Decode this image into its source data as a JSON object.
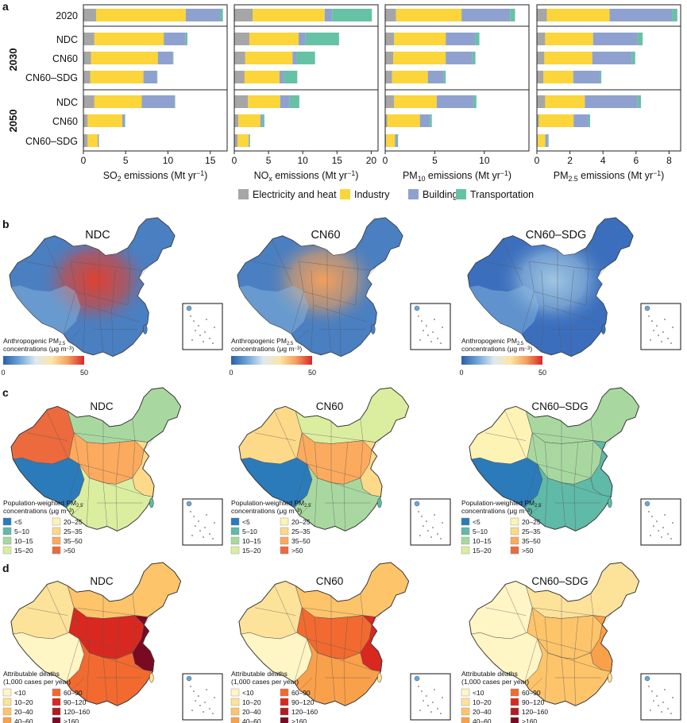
{
  "panel_labels": {
    "a": "a",
    "b": "b",
    "c": "c",
    "d": "d"
  },
  "panel_a": {
    "row_labels": [
      "2020",
      "NDC",
      "CN60",
      "CN60–SDG",
      "NDC",
      "CN60",
      "CN60–SDG"
    ],
    "group_labels": {
      "g2030": "2030",
      "g2050": "2050"
    },
    "legend": [
      {
        "label": "Electricity and heat",
        "color": "#a6a6a6"
      },
      {
        "label": "Industry",
        "color": "#fbd53a"
      },
      {
        "label": "Building",
        "color": "#8fa2cf"
      },
      {
        "label": "Transportation",
        "color": "#66c2a4"
      }
    ]
  },
  "chart_data": [
    {
      "type": "bar",
      "orientation": "horizontal",
      "stacked": true,
      "categories": [
        "2020",
        "NDC",
        "CN60",
        "CN60–SDG",
        "NDC",
        "CN60",
        "CN60–SDG"
      ],
      "xlabel": "SO2 emissions (Mt yr−1)",
      "xlim": [
        0,
        17
      ],
      "xticks": [
        "0",
        "5",
        "10",
        "15"
      ],
      "series": [
        {
          "name": "Electricity and heat",
          "values": [
            1.5,
            1.3,
            0.9,
            0.8,
            1.3,
            0.5,
            0.5
          ]
        },
        {
          "name": "Industry",
          "values": [
            10.6,
            8.2,
            7.9,
            6.3,
            5.6,
            4.1,
            1.2
          ]
        },
        {
          "name": "Building",
          "values": [
            4.1,
            2.6,
            1.8,
            1.6,
            3.9,
            0.3,
            0.1
          ]
        },
        {
          "name": "Transportation",
          "values": [
            0.3,
            0.2,
            0.05,
            0.05,
            0.05,
            0.05,
            0.05
          ]
        }
      ]
    },
    {
      "type": "bar",
      "orientation": "horizontal",
      "stacked": true,
      "categories": [
        "2020",
        "NDC",
        "CN60",
        "CN60–SDG",
        "NDC",
        "CN60",
        "CN60–SDG"
      ],
      "xlabel": "NOx emissions (Mt yr−1)",
      "xlim": [
        0,
        21
      ],
      "xticks": [
        "0",
        "5",
        "10",
        "15",
        "20"
      ],
      "series": [
        {
          "name": "Electricity and heat",
          "values": [
            2.7,
            2.2,
            1.6,
            1.5,
            2.0,
            0.6,
            0.5
          ]
        },
        {
          "name": "Industry",
          "values": [
            10.5,
            7.2,
            6.9,
            5.1,
            4.7,
            3.2,
            1.6
          ]
        },
        {
          "name": "Building",
          "values": [
            1.1,
            1.0,
            0.6,
            0.7,
            1.4,
            0.3,
            0.1
          ]
        },
        {
          "name": "Transportation",
          "values": [
            5.8,
            4.9,
            2.7,
            1.9,
            1.4,
            0.3,
            0.1
          ]
        }
      ]
    },
    {
      "type": "bar",
      "orientation": "horizontal",
      "stacked": true,
      "categories": [
        "2020",
        "NDC",
        "CN60",
        "CN60–SDG",
        "NDC",
        "CN60",
        "CN60–SDG"
      ],
      "xlabel": "PM10 emissions (Mt yr−1)",
      "xlim": [
        0,
        14.5
      ],
      "xticks": [
        "0",
        "5",
        "10"
      ],
      "series": [
        {
          "name": "Electricity and heat",
          "values": [
            1.1,
            0.9,
            0.8,
            0.7,
            0.9,
            0.2,
            0.1
          ]
        },
        {
          "name": "Industry",
          "values": [
            6.6,
            5.2,
            5.3,
            3.6,
            4.3,
            3.3,
            0.9
          ]
        },
        {
          "name": "Building",
          "values": [
            4.9,
            3.0,
            2.7,
            1.6,
            3.7,
            1.0,
            0.2
          ]
        },
        {
          "name": "Transportation",
          "values": [
            0.5,
            0.4,
            0.3,
            0.2,
            0.3,
            0.2,
            0.1
          ]
        }
      ]
    },
    {
      "type": "bar",
      "orientation": "horizontal",
      "stacked": true,
      "categories": [
        "2020",
        "NDC",
        "CN60",
        "CN60–SDG",
        "NDC",
        "CN60",
        "CN60–SDG"
      ],
      "xlabel": "PM2.5 emissions (Mt yr−1)",
      "xlim": [
        0,
        8.7
      ],
      "xticks": [
        "0",
        "2",
        "4",
        "6",
        "8"
      ],
      "series": [
        {
          "name": "Electricity and heat",
          "values": [
            0.6,
            0.5,
            0.45,
            0.4,
            0.5,
            0.12,
            0.06
          ]
        },
        {
          "name": "Industry",
          "values": [
            3.8,
            2.9,
            2.9,
            1.8,
            2.4,
            2.1,
            0.45
          ]
        },
        {
          "name": "Building",
          "values": [
            3.8,
            2.7,
            2.4,
            1.6,
            3.2,
            0.9,
            0.15
          ]
        },
        {
          "name": "Transportation",
          "values": [
            0.3,
            0.3,
            0.2,
            0.1,
            0.2,
            0.1,
            0.05
          ]
        }
      ]
    }
  ],
  "panel_b": {
    "maps": [
      {
        "title": "NDC"
      },
      {
        "title": "CN60"
      },
      {
        "title": "CN60–SDG"
      }
    ],
    "legend_line1": "Anthropogenic PM",
    "legend_sub": "2.5",
    "legend_line2": "concentrations (μg m",
    "legend_sup": "−3",
    "legend_close": ")",
    "scale_min": "0",
    "scale_max": "50",
    "gradient": [
      "#2c5fa8",
      "#6fa5d6",
      "#dfe9f0",
      "#fbe6a8",
      "#f4a05e",
      "#d7262a"
    ],
    "map_colors": [
      {
        "base": "#4a7fc1",
        "hot": "#e0402f"
      },
      {
        "base": "#4a7fc1",
        "hot": "#f2a05a"
      },
      {
        "base": "#3b6fbd",
        "hot": "#9fc5e2"
      }
    ]
  },
  "panel_c": {
    "maps": [
      {
        "title": "NDC"
      },
      {
        "title": "CN60"
      },
      {
        "title": "CN60–SDG"
      }
    ],
    "legend_line1": "Population-weighted PM",
    "legend_sub": "2.5",
    "legend_line2": "concentrations (μg m",
    "legend_sup": "−3",
    "legend_close": ")",
    "categories": [
      {
        "label": "<5",
        "color": "#2b7bba"
      },
      {
        "label": "5–10",
        "color": "#5fbaa8"
      },
      {
        "label": "10–15",
        "color": "#a8d8a0"
      },
      {
        "label": "15–20",
        "color": "#dbeea0"
      },
      {
        "label": "20–25",
        "color": "#fcf3b5"
      },
      {
        "label": "25–35",
        "color": "#fdd98a"
      },
      {
        "label": "35–50",
        "color": "#fcaa5e"
      },
      {
        "label": ">50",
        "color": "#ec6a3d"
      }
    ],
    "map_colors": [
      {
        "west": "#ec6a3d",
        "tibet": "#2b7bba",
        "north": "#a8d8a0",
        "center": "#fcaa5e",
        "south": "#dbeea0",
        "east": "#fdd98a"
      },
      {
        "west": "#fdd98a",
        "tibet": "#2b7bba",
        "north": "#dbeea0",
        "center": "#fcaa5e",
        "south": "#a8d8a0",
        "east": "#fdd98a"
      },
      {
        "west": "#fcf3b5",
        "tibet": "#2b7bba",
        "north": "#a8d8a0",
        "center": "#a8d8a0",
        "south": "#5fbaa8",
        "east": "#5fbaa8"
      }
    ]
  },
  "panel_d": {
    "maps": [
      {
        "title": "NDC"
      },
      {
        "title": "CN60"
      },
      {
        "title": "CN60–SDG"
      }
    ],
    "legend_line1": "Attributable deaths",
    "legend_line2": "(1,000 cases per year)",
    "categories": [
      {
        "label": "<10",
        "color": "#fff5c5"
      },
      {
        "label": "10–20",
        "color": "#fde29a"
      },
      {
        "label": "20–40",
        "color": "#fdc46a"
      },
      {
        "label": "40–60",
        "color": "#f9a04a"
      },
      {
        "label": "60–90",
        "color": "#f26a30"
      },
      {
        "label": "90–120",
        "color": "#d92820"
      },
      {
        "label": "120–160",
        "color": "#b01c22"
      },
      {
        "label": ">160",
        "color": "#7a0a22"
      }
    ],
    "map_colors": [
      {
        "west": "#fde29a",
        "tibet": "#fff5c5",
        "north": "#fdc46a",
        "center": "#d92820",
        "south": "#f26a30",
        "east": "#7a0a22"
      },
      {
        "west": "#fde29a",
        "tibet": "#fff5c5",
        "north": "#fdc46a",
        "center": "#f26a30",
        "south": "#f9a04a",
        "east": "#d92820"
      },
      {
        "west": "#fff5c5",
        "tibet": "#fff5c5",
        "north": "#fde29a",
        "center": "#fdc46a",
        "south": "#fdc46a",
        "east": "#f9a04a"
      }
    ]
  }
}
